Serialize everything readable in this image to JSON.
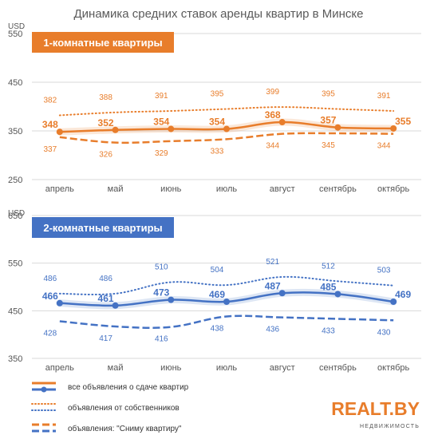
{
  "chart_data": [
    {
      "type": "line",
      "title": "Динамика средних ставок аренды квартир в Минске",
      "ylabel": "USD",
      "panel_label": "1-комнатные квартиры",
      "categories": [
        "апрель",
        "май",
        "июнь",
        "июль",
        "август",
        "сентябрь",
        "октябрь"
      ],
      "ylim": [
        250,
        550
      ],
      "yticks": [
        250,
        350,
        450,
        550
      ],
      "grid": true,
      "color": "#e87d2b",
      "series": [
        {
          "name": "все объявления о сдаче квартир",
          "style": "solid",
          "values": [
            348,
            352,
            354,
            354,
            368,
            357,
            355
          ]
        },
        {
          "name": "объявления от собственников",
          "style": "dotted",
          "values": [
            382,
            388,
            391,
            395,
            399,
            395,
            391
          ]
        },
        {
          "name": "объявления: \"Сниму квартиру\"",
          "style": "dashed",
          "values": [
            337,
            326,
            329,
            333,
            344,
            345,
            344
          ]
        }
      ]
    },
    {
      "type": "line",
      "ylabel": "USD",
      "panel_label": "2-комнатные квартиры",
      "categories": [
        "апрель",
        "май",
        "июнь",
        "июль",
        "август",
        "сентябрь",
        "октябрь"
      ],
      "ylim": [
        350,
        650
      ],
      "yticks": [
        350,
        450,
        550,
        650
      ],
      "grid": true,
      "color": "#4472c4",
      "series": [
        {
          "name": "все объявления о сдаче квартир",
          "style": "solid",
          "values": [
            466,
            461,
            473,
            469,
            487,
            485,
            469
          ]
        },
        {
          "name": "объявления от собственников",
          "style": "dotted",
          "values": [
            486,
            486,
            510,
            504,
            521,
            512,
            503
          ]
        },
        {
          "name": "объявления: \"Сниму квартиру\"",
          "style": "dashed",
          "values": [
            428,
            417,
            416,
            438,
            436,
            433,
            430
          ]
        }
      ]
    }
  ],
  "legend": {
    "position": "bottom-left",
    "items": [
      {
        "label": "все объявления о сдаче квартир",
        "style": "solid"
      },
      {
        "label": "объявления от собственников",
        "style": "dotted"
      },
      {
        "label": "объявления: \"Сниму квартиру\"",
        "style": "dashed"
      }
    ]
  },
  "brand": {
    "name": "REALT.BY",
    "tagline": "НЕДВИЖИМОСТЬ"
  },
  "colors": {
    "orange": "#e87d2b",
    "blue": "#4472c4",
    "grid": "#d9d9d9"
  }
}
